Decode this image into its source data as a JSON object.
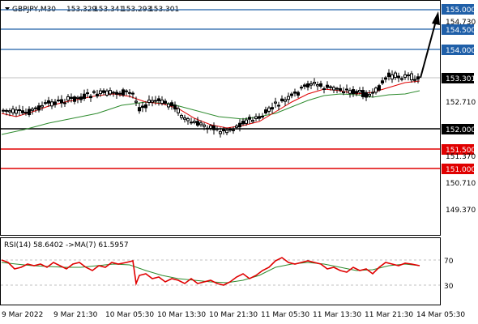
{
  "header": {
    "symbol": "GBPJPY,M30",
    "open": "153.329",
    "high": "153.341",
    "low": "153.293",
    "close": "153.301"
  },
  "price_axis": {
    "ticks": [
      "154.730",
      "152.710",
      "151.370",
      "150.710",
      "149.370"
    ],
    "levels": [
      {
        "value": "155.000",
        "role": "target",
        "color": "#1f5fa8"
      },
      {
        "value": "154.500",
        "role": "resistance",
        "color": "#1f5fa8"
      },
      {
        "value": "154.000",
        "role": "resistance",
        "color": "#1f5fa8"
      },
      {
        "value": "153.301",
        "role": "current",
        "color": "#000000"
      },
      {
        "value": "152.000",
        "role": "pivot",
        "color": "#000000"
      },
      {
        "value": "151.500",
        "role": "support",
        "color": "#e00000"
      },
      {
        "value": "151.000",
        "role": "support",
        "color": "#e00000"
      }
    ]
  },
  "rsi": {
    "label": "RSI(14) 58.6402  ->MA(7) 61.5957",
    "levels": [
      "70",
      "30"
    ],
    "colors": {
      "rsi": "#e00000",
      "ma": "#2e8b2e"
    }
  },
  "time_axis": [
    "9 Mar 2022",
    "9 Mar 21:30",
    "10 Mar 05:30",
    "10 Mar 13:30",
    "10 Mar 21:30",
    "11 Mar 05:30",
    "11 Mar 13:30",
    "11 Mar 21:30",
    "14 Mar 05:30"
  ],
  "colors": {
    "fast_ma": "#e00000",
    "slow_ma": "#2e8b2e",
    "candle": "#000000",
    "arrow": "#000000"
  },
  "icons": {
    "dropdown": "triangle-down-icon"
  }
}
